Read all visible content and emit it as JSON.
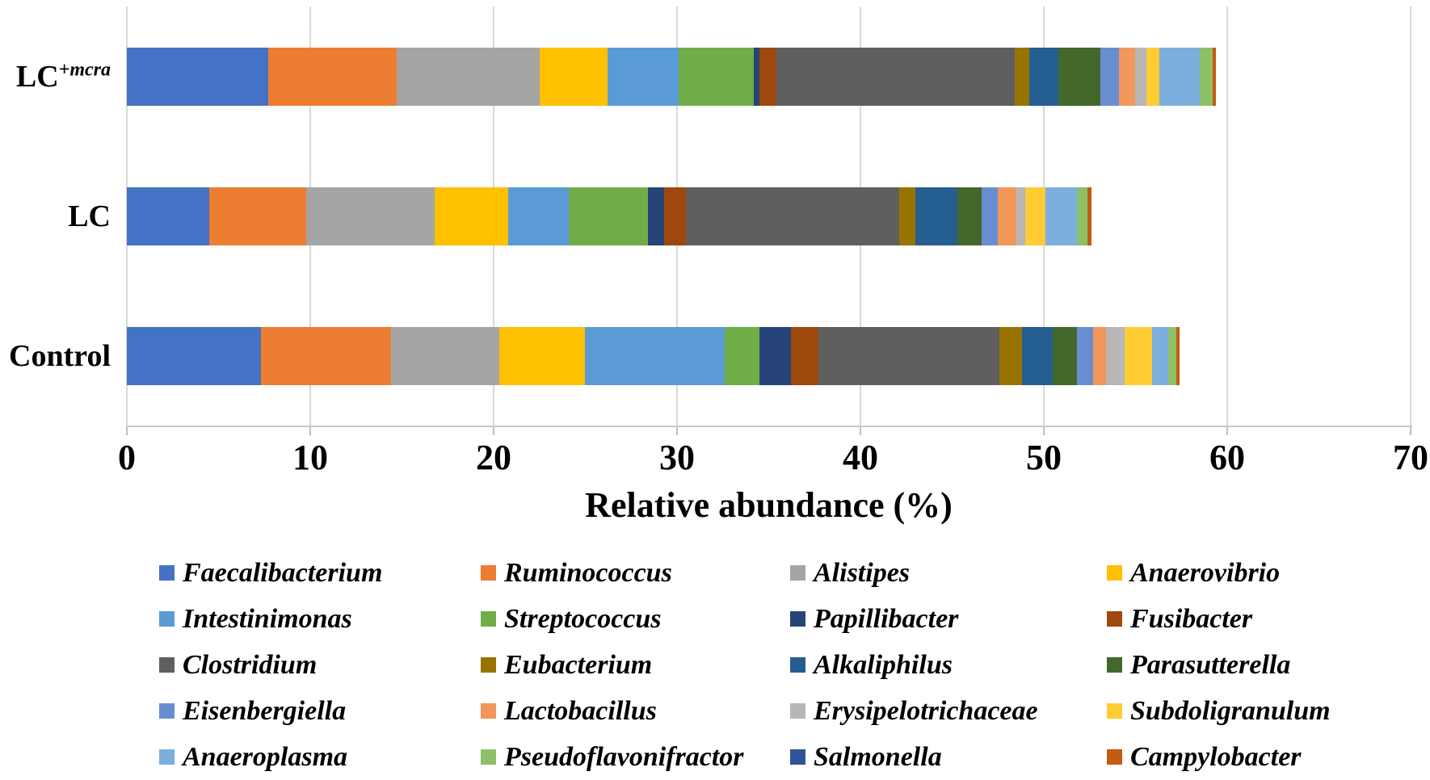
{
  "figure": {
    "background": "#ffffff",
    "categories": [
      {
        "key": "LC+mcra",
        "label_base": "LC",
        "label_sup": "+mcra"
      },
      {
        "key": "LC",
        "label_base": "LC",
        "label_sup": ""
      },
      {
        "key": "Control",
        "label_base": "Control",
        "label_sup": ""
      }
    ]
  },
  "chart_data": {
    "type": "bar",
    "subtype": "horizontal-stacked",
    "title": "",
    "xlabel": "Relative abundance (%)",
    "ylabel": "",
    "categories": [
      "LC+mcra",
      "LC",
      "Control"
    ],
    "xlim": [
      0,
      70
    ],
    "xticks": [
      0,
      10,
      20,
      30,
      40,
      50,
      60,
      70
    ],
    "grid": true,
    "legend_position": "bottom",
    "legend_columns": 4,
    "series": [
      {
        "name": "Faecalibacterium",
        "color": "#4472C4",
        "values": [
          7.7,
          4.5,
          7.3
        ]
      },
      {
        "name": "Ruminococcus",
        "color": "#ED7D31",
        "values": [
          7.0,
          5.3,
          7.1
        ]
      },
      {
        "name": "Alistipes",
        "color": "#A5A5A5",
        "values": [
          7.8,
          7.0,
          5.9
        ]
      },
      {
        "name": "Anaerovibrio",
        "color": "#FFC000",
        "values": [
          3.7,
          4.0,
          4.7
        ]
      },
      {
        "name": "Intestinimonas",
        "color": "#5B9BD5",
        "values": [
          3.9,
          3.3,
          7.6
        ]
      },
      {
        "name": "Streptococcus",
        "color": "#70AD47",
        "values": [
          4.1,
          4.3,
          1.9
        ]
      },
      {
        "name": "Papillibacter",
        "color": "#264478",
        "values": [
          0.3,
          0.9,
          1.7
        ]
      },
      {
        "name": "Fusibacter",
        "color": "#9E480E",
        "values": [
          0.9,
          1.2,
          1.5
        ]
      },
      {
        "name": "Clostridium",
        "color": "#5F5F5F",
        "values": [
          13.0,
          11.6,
          9.9
        ]
      },
      {
        "name": "Eubacterium",
        "color": "#997300",
        "values": [
          0.8,
          0.9,
          1.2
        ]
      },
      {
        "name": "Alkaliphilus",
        "color": "#255E91",
        "values": [
          1.6,
          2.3,
          1.7
        ]
      },
      {
        "name": "Parasutterella",
        "color": "#43682B",
        "values": [
          2.3,
          1.3,
          1.3
        ]
      },
      {
        "name": "Eisenbergiella",
        "color": "#698ED0",
        "values": [
          1.0,
          0.9,
          0.9
        ]
      },
      {
        "name": "Lactobacillus",
        "color": "#F1975A",
        "values": [
          0.9,
          1.0,
          0.7
        ]
      },
      {
        "name": "Erysipelotrichaceae",
        "color": "#B7B7B7",
        "values": [
          0.6,
          0.5,
          1.0
        ]
      },
      {
        "name": "Subdoligranulum",
        "color": "#FFCD33",
        "values": [
          0.7,
          1.1,
          1.5
        ]
      },
      {
        "name": "Anaeroplasma",
        "color": "#7CAFDD",
        "values": [
          2.2,
          1.7,
          0.9
        ]
      },
      {
        "name": "Pseudoflavonifractor",
        "color": "#8CC168",
        "values": [
          0.7,
          0.6,
          0.45
        ]
      },
      {
        "name": "Salmonella",
        "color": "#2F5597",
        "values": [
          0.0,
          0.0,
          0.0
        ]
      },
      {
        "name": "Campylobacter",
        "color": "#C55A11",
        "values": [
          0.2,
          0.2,
          0.15
        ]
      }
    ],
    "stack_totals": [
      59.4,
      52.6,
      57.4
    ]
  },
  "colors": {
    "gridline": "#d9d9d9",
    "axis": "#bfbfbf",
    "text": "#000000"
  }
}
